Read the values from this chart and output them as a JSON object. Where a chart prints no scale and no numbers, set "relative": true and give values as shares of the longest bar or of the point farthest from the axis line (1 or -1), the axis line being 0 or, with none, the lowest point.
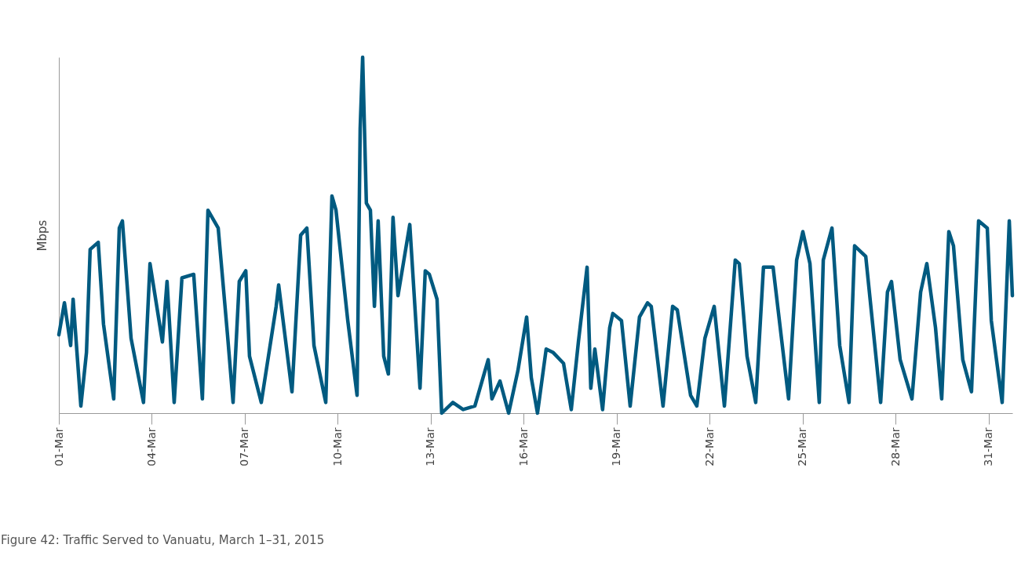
{
  "chart_data": {
    "type": "line",
    "relative": true,
    "ylabel": "Mbps",
    "annotations": [
      "Figure 42: Traffic Served to Vanuatu, March 1–31, 2015"
    ],
    "xlim": [
      "2015-03-01T00:00",
      "2015-03-31T18:14"
    ],
    "xticks": [
      {
        "value": "2015-03-01",
        "label": "01-Mar"
      },
      {
        "value": "2015-03-04",
        "label": "04-Mar"
      },
      {
        "value": "2015-03-07",
        "label": "07-Mar"
      },
      {
        "value": "2015-03-10",
        "label": "10-Mar"
      },
      {
        "value": "2015-03-13",
        "label": "13-Mar"
      },
      {
        "value": "2015-03-16",
        "label": "16-Mar"
      },
      {
        "value": "2015-03-19",
        "label": "19-Mar"
      },
      {
        "value": "2015-03-22",
        "label": "22-Mar"
      },
      {
        "value": "2015-03-25",
        "label": "25-Mar"
      },
      {
        "value": "2015-03-28",
        "label": "28-Mar"
      },
      {
        "value": "2015-03-31",
        "label": "31-Mar"
      }
    ],
    "x": [
      "2015-03-01T00:00",
      "2015-03-01T04:19",
      "2015-03-01T09:07",
      "2015-03-01T11:02",
      "2015-03-01T17:02",
      "2015-03-01T21:22",
      "2015-03-02T00:14",
      "2015-03-02T06:29",
      "2015-03-02T10:34",
      "2015-03-02T18:29",
      "2015-03-02T22:48",
      "2015-03-03T01:12",
      "2015-03-03T07:55",
      "2015-03-03T17:31",
      "2015-03-03T22:34",
      "2015-03-04T08:10",
      "2015-03-04T11:46",
      "2015-03-04T17:17",
      "2015-03-04T23:17",
      "2015-03-05T08:24",
      "2015-03-05T15:07",
      "2015-03-05T19:26",
      "2015-03-06T03:22",
      "2015-03-06T10:34",
      "2015-03-06T14:53",
      "2015-03-06T19:41",
      "2015-03-07T00:43",
      "2015-03-07T03:36",
      "2015-03-07T12:43",
      "2015-03-08T00:14",
      "2015-03-08T02:10",
      "2015-03-08T12:29",
      "2015-03-08T19:12",
      "2015-03-09T00:00",
      "2015-03-09T05:31",
      "2015-03-09T14:38",
      "2015-03-09T19:26",
      "2015-03-09T22:34",
      "2015-03-10T07:41",
      "2015-03-10T14:53",
      "2015-03-10T17:17",
      "2015-03-10T19:12",
      "2015-03-10T22:05",
      "2015-03-11T01:12",
      "2015-03-11T04:19",
      "2015-03-11T07:12",
      "2015-03-11T11:31",
      "2015-03-11T15:07",
      "2015-03-11T18:43",
      "2015-03-11T22:34",
      "2015-03-12T07:41",
      "2015-03-12T15:36",
      "2015-03-12T19:41",
      "2015-03-12T22:48",
      "2015-03-13T04:48",
      "2015-03-13T08:24",
      "2015-03-13T17:02",
      "2015-03-14T00:58",
      "2015-03-14T10:05",
      "2015-03-14T20:24",
      "2015-03-14T23:17",
      "2015-03-15T05:31",
      "2015-03-15T12:14",
      "2015-03-15T19:26",
      "2015-03-16T02:10",
      "2015-03-16T05:46",
      "2015-03-16T10:34",
      "2015-03-16T17:17",
      "2015-03-16T22:48",
      "2015-03-17T06:43",
      "2015-03-17T12:43",
      "2015-03-17T18:14",
      "2015-03-18T00:58",
      "2015-03-18T03:50",
      "2015-03-18T06:58",
      "2015-03-18T12:58",
      "2015-03-18T18:29",
      "2015-03-18T20:53",
      "2015-03-19T03:36",
      "2015-03-19T10:19",
      "2015-03-19T17:31",
      "2015-03-19T23:46",
      "2015-03-20T02:38",
      "2015-03-20T11:46",
      "2015-03-20T19:12",
      "2015-03-20T22:48",
      "2015-03-21T09:07",
      "2015-03-21T13:55",
      "2015-03-21T20:10",
      "2015-03-22T03:22",
      "2015-03-22T11:17",
      "2015-03-22T19:41",
      "2015-03-22T22:48",
      "2015-03-23T04:48",
      "2015-03-23T11:31",
      "2015-03-23T17:31",
      "2015-03-24T00:58",
      "2015-03-24T12:58",
      "2015-03-24T19:12",
      "2015-03-25T00:00",
      "2015-03-25T05:31",
      "2015-03-25T12:43",
      "2015-03-25T15:50",
      "2015-03-25T22:34",
      "2015-03-26T04:34",
      "2015-03-26T11:46",
      "2015-03-26T16:05",
      "2015-03-27T00:43",
      "2015-03-27T12:14",
      "2015-03-27T17:31",
      "2015-03-27T20:38",
      "2015-03-28T03:22",
      "2015-03-28T12:29",
      "2015-03-28T19:12",
      "2015-03-29T00:00",
      "2015-03-29T06:43",
      "2015-03-29T11:31",
      "2015-03-29T17:02",
      "2015-03-29T20:38",
      "2015-03-30T03:50",
      "2015-03-30T10:34",
      "2015-03-30T16:05",
      "2015-03-30T22:48",
      "2015-03-31T01:55",
      "2015-03-31T10:19",
      "2015-03-31T15:50",
      "2015-03-31T18:14"
    ],
    "series": [
      {
        "color": "#005a80",
        "values": [
          0.22,
          0.31,
          0.19,
          0.32,
          0.02,
          0.17,
          0.46,
          0.48,
          0.25,
          0.04,
          0.52,
          0.54,
          0.21,
          0.03,
          0.42,
          0.2,
          0.37,
          0.03,
          0.38,
          0.39,
          0.04,
          0.57,
          0.52,
          0.22,
          0.03,
          0.37,
          0.4,
          0.16,
          0.03,
          0.3,
          0.36,
          0.06,
          0.5,
          0.52,
          0.19,
          0.03,
          0.61,
          0.57,
          0.26,
          0.05,
          0.8,
          1.0,
          0.59,
          0.57,
          0.3,
          0.54,
          0.16,
          0.11,
          0.55,
          0.33,
          0.53,
          0.07,
          0.4,
          0.39,
          0.32,
          0.0,
          0.03,
          0.01,
          0.02,
          0.15,
          0.04,
          0.09,
          0.0,
          0.12,
          0.27,
          0.1,
          0.0,
          0.18,
          0.17,
          0.14,
          0.01,
          0.2,
          0.41,
          0.07,
          0.18,
          0.01,
          0.24,
          0.28,
          0.26,
          0.02,
          0.27,
          0.31,
          0.3,
          0.02,
          0.3,
          0.29,
          0.05,
          0.02,
          0.21,
          0.3,
          0.02,
          0.43,
          0.42,
          0.16,
          0.03,
          0.41,
          0.41,
          0.04,
          0.43,
          0.51,
          0.42,
          0.03,
          0.43,
          0.52,
          0.19,
          0.03,
          0.47,
          0.44,
          0.03,
          0.34,
          0.37,
          0.15,
          0.04,
          0.34,
          0.42,
          0.24,
          0.04,
          0.51,
          0.47,
          0.15,
          0.06,
          0.54,
          0.52,
          0.26,
          0.03,
          0.54,
          0.33
        ]
      }
    ]
  }
}
